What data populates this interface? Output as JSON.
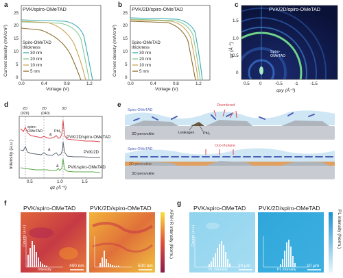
{
  "panels": {
    "a": {
      "letter": "a",
      "title": "PVK/spiro-OMeTAD",
      "ylabel": "Current density (mA/cm²)",
      "xlabel": "Voltage (V)",
      "yticks": [
        "25",
        "20",
        "15",
        "10",
        "5",
        "0"
      ],
      "xticks": [
        "0.0",
        "0.4",
        "0.8",
        "1.2"
      ],
      "legend_title": "Spiro-OMeTAD",
      "legend_subtitle": "thickness",
      "legend": [
        "30 nm",
        "20 nm",
        "10 nm",
        "5 nm"
      ]
    },
    "b": {
      "letter": "b",
      "title": "PVK/2D/spiro-OMeTAD",
      "ylabel": "Current density (mA/cm²)",
      "xlabel": "Voltage (V)",
      "yticks": [
        "25",
        "20",
        "15",
        "10",
        "5",
        "0"
      ],
      "xticks": [
        "0.0",
        "0.4",
        "0.8",
        "1.2"
      ],
      "legend_title": "Spiro-OMeTAD",
      "legend_subtitle": "thickness",
      "legend": [
        "30 nm",
        "20 nm",
        "10 nm",
        "5 nm"
      ]
    },
    "c": {
      "letter": "c",
      "title": "PVK/2D/spiro-OMeTAD",
      "ylabel": "qz (Å⁻¹)",
      "xlabel": "qxy (Å⁻¹)",
      "yticks": [
        "1.5",
        "1.0",
        "0.5",
        "0"
      ],
      "xticks": [
        "0.5",
        "0",
        "-0.5",
        "-1",
        "-1.5"
      ],
      "annotation_1": "Spiro-",
      "annotation_2": "OMeTAD"
    },
    "d": {
      "letter": "d",
      "top_labels": [
        "2D",
        "2D",
        "3D"
      ],
      "miller": [
        "(020)",
        "(040)"
      ],
      "spiro_label_1": "spiro-",
      "spiro_label_2": "OMeTAD",
      "pbi_label": "PbI₂",
      "amp": "&",
      "traces": [
        "PVK/2D/spiro-OMeTAD",
        "PVK/2D",
        "PVK/spiro-OMeTAD"
      ],
      "ylabel": "Intensity (a.u.)",
      "xlabel": "qz (Å⁻¹)",
      "xticks": [
        "0.5",
        "1.0",
        "1.5"
      ]
    },
    "e": {
      "letter": "e",
      "top_spiro": "Spiro-OMeTAD",
      "top_disordered": "Disordered",
      "top_leakages": "Leakages",
      "top_pbi": "PbI₂",
      "top_pvk": "3D perovskite",
      "bot_spiro": "Spiro-OMeTAD",
      "bot_outofplane": "Out-of-plane",
      "bot_2d": "2D perovskite",
      "bot_pvk": "3D perovskite"
    },
    "f": {
      "letter": "f",
      "title_left": "PVK/spiro-OMeTAD",
      "title_right": "PVK/2D/spiro-OMeTAD",
      "scale_left": "400 nm",
      "scale_right": "500 nm",
      "hist_ylabel": "Counts (a.u.)",
      "hist_xlabel": "Intensity",
      "colorbar_label": "AFM-IR intensity (Norm.)"
    },
    "g": {
      "letter": "g",
      "title_left": "PVK/spiro-OMeTAD",
      "title_right": "PVK/2D/spiro-OMeTAD",
      "scale_left": "20 μm",
      "scale_right": "10 μm",
      "hist_ylabel": "Counts (a.u.)",
      "hist_xlabel": "PL intensity",
      "colorbar_label": "PL intensity (Norm.)"
    }
  },
  "colors": {
    "c30": "#36a9b3",
    "c20": "#83c98e",
    "c10": "#c9a254",
    "c5": "#8a6a2c",
    "trace_top": "#d9434d",
    "trace_mid": "#5e6672",
    "trace_bot": "#5aa84a"
  }
}
